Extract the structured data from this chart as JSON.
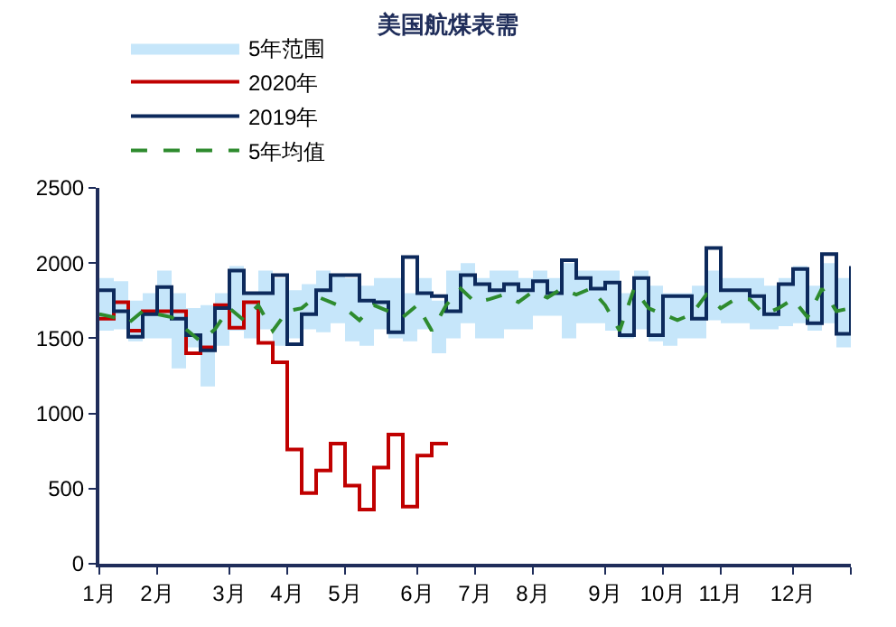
{
  "chart_data": {
    "type": "step",
    "title": "美国航煤表需",
    "categories": [
      "1月",
      null,
      null,
      null,
      "2月",
      null,
      null,
      null,
      null,
      "3月",
      null,
      null,
      null,
      "4月",
      null,
      null,
      null,
      "5月",
      null,
      null,
      null,
      null,
      "6月",
      null,
      null,
      null,
      "7月",
      null,
      null,
      null,
      "8月",
      null,
      null,
      null,
      null,
      "9月",
      null,
      null,
      null,
      "10月",
      null,
      null,
      null,
      "11月",
      null,
      null,
      null,
      null,
      "12月",
      null,
      null,
      null,
      null
    ],
    "series": [
      {
        "name": "5年范围",
        "type": "area",
        "color": "#c6e6fa",
        "values": [
          null,
          null,
          null,
          null,
          null,
          null,
          null,
          null,
          null,
          null,
          null,
          null,
          null,
          null,
          null,
          null,
          null,
          null,
          null,
          null,
          null,
          null,
          null,
          null,
          null,
          null,
          null,
          null,
          null,
          null,
          null,
          null,
          null,
          null,
          null,
          null,
          null,
          null,
          null,
          null,
          null,
          null,
          null,
          null,
          null,
          null,
          null,
          null,
          null,
          null,
          null,
          null,
          null
        ],
        "lower": [
          1550,
          1560,
          1480,
          1500,
          1500,
          1300,
          1440,
          1180,
          1450,
          1550,
          1500,
          1560,
          1450,
          1500,
          1560,
          1540,
          1600,
          1480,
          1450,
          1560,
          1500,
          1480,
          1560,
          1400,
          1500,
          1600,
          1500,
          1500,
          1560,
          1560,
          1650,
          1650,
          1500,
          1600,
          1600,
          1550,
          1500,
          1560,
          1480,
          1450,
          1500,
          1500,
          1620,
          1600,
          1600,
          1560,
          1560,
          1580,
          1600,
          1550,
          1600,
          1440,
          1600
        ],
        "upper": [
          1900,
          1880,
          1750,
          1800,
          1950,
          1800,
          1700,
          1720,
          1800,
          1980,
          1800,
          1950,
          1900,
          1820,
          1860,
          1950,
          1920,
          1900,
          1850,
          1900,
          1900,
          1800,
          1900,
          1750,
          1950,
          2000,
          1900,
          1950,
          1950,
          1900,
          1950,
          1900,
          2000,
          1950,
          1950,
          1950,
          1800,
          1950,
          1850,
          1800,
          1800,
          1850,
          1950,
          1900,
          1900,
          1900,
          1850,
          1900,
          1980,
          1850,
          2000,
          1900,
          1900
        ]
      },
      {
        "name": "2020年",
        "color": "#c00000",
        "line_style": "solid",
        "values": [
          1630,
          1740,
          1550,
          1680,
          1680,
          1680,
          1400,
          1440,
          1720,
          1570,
          1740,
          1470,
          1340,
          760,
          470,
          620,
          800,
          520,
          360,
          640,
          860,
          380,
          720,
          800,
          810,
          null,
          null,
          null,
          null,
          null,
          null,
          null,
          null,
          null,
          null,
          null,
          null,
          null,
          null,
          null,
          null,
          null,
          null,
          null,
          null,
          null,
          null,
          null,
          null,
          null,
          null,
          null,
          null
        ]
      },
      {
        "name": "2019年",
        "color": "#0d2a5c",
        "line_style": "solid",
        "values": [
          1820,
          1680,
          1510,
          1660,
          1840,
          1630,
          1520,
          1420,
          1700,
          1950,
          1800,
          1800,
          1920,
          1460,
          1660,
          1820,
          1920,
          1920,
          1750,
          1740,
          1540,
          2040,
          1800,
          1780,
          1680,
          1920,
          1860,
          1820,
          1860,
          1820,
          1880,
          1800,
          2020,
          1900,
          1830,
          1870,
          1520,
          1900,
          1520,
          1780,
          1780,
          1630,
          2100,
          1820,
          1820,
          1780,
          1660,
          1860,
          1960,
          1600,
          2060,
          1530,
          1980
        ]
      },
      {
        "name": "5年均值",
        "type": "line",
        "color": "#2e8b2e",
        "line_style": "dashed",
        "values": [
          1660,
          1640,
          1600,
          1680,
          1660,
          1640,
          1560,
          1480,
          1560,
          1700,
          1620,
          1720,
          1550,
          1680,
          1700,
          1780,
          1740,
          1700,
          1620,
          1720,
          1680,
          1640,
          1720,
          1550,
          1720,
          1830,
          1740,
          1760,
          1790,
          1740,
          1810,
          1770,
          1830,
          1790,
          1830,
          1720,
          1550,
          1830,
          1700,
          1660,
          1620,
          1660,
          1790,
          1700,
          1760,
          1760,
          1660,
          1700,
          1760,
          1640,
          1830,
          1680,
          1700
        ]
      }
    ],
    "ylim": [
      0,
      2500
    ],
    "yticks": [
      0,
      500,
      1000,
      1500,
      2000,
      2500
    ],
    "grid": false,
    "legend": "top"
  }
}
